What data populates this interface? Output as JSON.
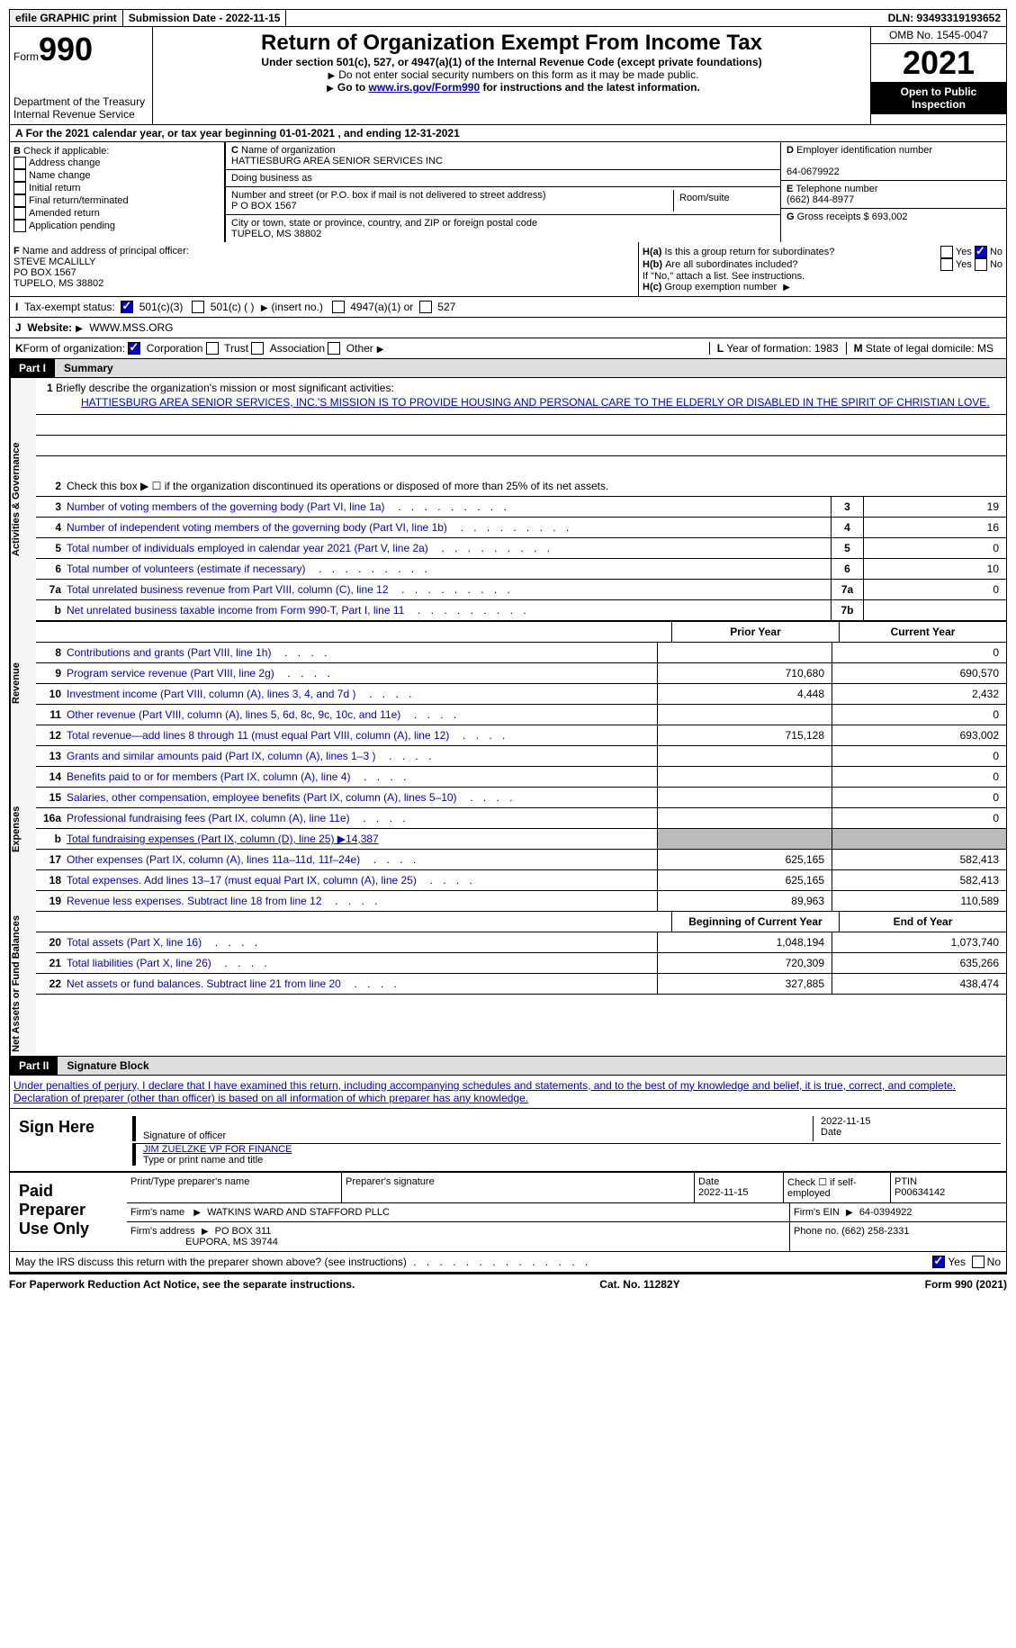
{
  "topbar": {
    "efile": "efile GRAPHIC print",
    "submission": "Submission Date - 2022-11-15",
    "dln": "DLN: 93493319193652"
  },
  "header": {
    "form_label": "Form",
    "form_num": "990",
    "title": "Return of Organization Exempt From Income Tax",
    "subtitle": "Under section 501(c), 527, or 4947(a)(1) of the Internal Revenue Code (except private foundations)",
    "note1": "Do not enter social security numbers on this form as it may be made public.",
    "note2_pre": "Go to ",
    "note2_link": "www.irs.gov/Form990",
    "note2_post": " for instructions and the latest information.",
    "dept": "Department of the Treasury",
    "irs": "Internal Revenue Service",
    "omb": "OMB No. 1545-0047",
    "year": "2021",
    "open": "Open to Public Inspection"
  },
  "lineA": "For the 2021 calendar year, or tax year beginning 01-01-2021   , and ending 12-31-2021",
  "sectionB": {
    "label": "Check if applicable:",
    "items": [
      "Address change",
      "Name change",
      "Initial return",
      "Final return/terminated",
      "Amended return",
      "Application pending"
    ]
  },
  "sectionC": {
    "name_label": "Name of organization",
    "name": "HATTIESBURG AREA SENIOR SERVICES INC",
    "dba_label": "Doing business as",
    "addr_label": "Number and street (or P.O. box if mail is not delivered to street address)",
    "addr": "P O BOX 1567",
    "room_label": "Room/suite",
    "city_label": "City or town, state or province, country, and ZIP or foreign postal code",
    "city": "TUPELO, MS  38802"
  },
  "sectionD": {
    "ein_label": "Employer identification number",
    "ein": "64-0679922",
    "phone_label": "Telephone number",
    "phone": "(662) 844-8977",
    "gross_label": "Gross receipts $",
    "gross": "693,002"
  },
  "sectionF": {
    "label": "Name and address of principal officer:",
    "name": "STEVE MCALILLY",
    "addr1": "PO BOX 1567",
    "addr2": "TUPELO, MS  38802"
  },
  "sectionH": {
    "a": "Is this a group return for subordinates?",
    "b": "Are all subordinates included?",
    "b_note": "If \"No,\" attach a list. See instructions.",
    "c": "Group exemption number",
    "yes": "Yes",
    "no": "No"
  },
  "taxExempt": {
    "label": "Tax-exempt status:",
    "opt1": "501(c)(3)",
    "opt2": "501(c) (  )",
    "opt2_note": "(insert no.)",
    "opt3": "4947(a)(1) or",
    "opt4": "527"
  },
  "website": {
    "label": "Website:",
    "value": "WWW.MSS.ORG"
  },
  "lineK": {
    "label": "Form of organization:",
    "corp": "Corporation",
    "trust": "Trust",
    "assoc": "Association",
    "other": "Other"
  },
  "lineL": {
    "label": "Year of formation:",
    "value": "1983"
  },
  "lineM": {
    "label": "State of legal domicile:",
    "value": "MS"
  },
  "part1": {
    "label": "Part I",
    "title": "Summary"
  },
  "summary": {
    "line1_label": "Briefly describe the organization's mission or most significant activities:",
    "mission": "HATTIESBURG AREA SENIOR SERVICES, INC.'S MISSION IS TO PROVIDE HOUSING AND PERSONAL CARE TO THE ELDERLY OR DISABLED IN THE SPIRIT OF CHRISTIAN LOVE.",
    "line2": "Check this box ▶ ☐ if the organization discontinued its operations or disposed of more than 25% of its net assets.",
    "vert_ag": "Activities & Governance",
    "vert_rev": "Revenue",
    "vert_exp": "Expenses",
    "vert_na": "Net Assets or Fund Balances",
    "lines_ag": [
      {
        "n": "3",
        "d": "Number of voting members of the governing body (Part VI, line 1a)",
        "box": "3",
        "v": "19"
      },
      {
        "n": "4",
        "d": "Number of independent voting members of the governing body (Part VI, line 1b)",
        "box": "4",
        "v": "16"
      },
      {
        "n": "5",
        "d": "Total number of individuals employed in calendar year 2021 (Part V, line 2a)",
        "box": "5",
        "v": "0"
      },
      {
        "n": "6",
        "d": "Total number of volunteers (estimate if necessary)",
        "box": "6",
        "v": "10"
      },
      {
        "n": "7a",
        "d": "Total unrelated business revenue from Part VIII, column (C), line 12",
        "box": "7a",
        "v": "0"
      },
      {
        "n": "b",
        "d": "Net unrelated business taxable income from Form 990-T, Part I, line 11",
        "box": "7b",
        "v": ""
      }
    ],
    "prior_hdr": "Prior Year",
    "curr_hdr": "Current Year",
    "lines_rev": [
      {
        "n": "8",
        "d": "Contributions and grants (Part VIII, line 1h)",
        "p": "",
        "c": "0"
      },
      {
        "n": "9",
        "d": "Program service revenue (Part VIII, line 2g)",
        "p": "710,680",
        "c": "690,570"
      },
      {
        "n": "10",
        "d": "Investment income (Part VIII, column (A), lines 3, 4, and 7d )",
        "p": "4,448",
        "c": "2,432"
      },
      {
        "n": "11",
        "d": "Other revenue (Part VIII, column (A), lines 5, 6d, 8c, 9c, 10c, and 11e)",
        "p": "",
        "c": "0"
      },
      {
        "n": "12",
        "d": "Total revenue—add lines 8 through 11 (must equal Part VIII, column (A), line 12)",
        "p": "715,128",
        "c": "693,002"
      }
    ],
    "lines_exp": [
      {
        "n": "13",
        "d": "Grants and similar amounts paid (Part IX, column (A), lines 1–3 )",
        "p": "",
        "c": "0"
      },
      {
        "n": "14",
        "d": "Benefits paid to or for members (Part IX, column (A), line 4)",
        "p": "",
        "c": "0"
      },
      {
        "n": "15",
        "d": "Salaries, other compensation, employee benefits (Part IX, column (A), lines 5–10)",
        "p": "",
        "c": "0"
      },
      {
        "n": "16a",
        "d": "Professional fundraising fees (Part IX, column (A), line 11e)",
        "p": "",
        "c": "0"
      },
      {
        "n": "b",
        "d": "Total fundraising expenses (Part IX, column (D), line 25) ▶14,387",
        "grey": true
      },
      {
        "n": "17",
        "d": "Other expenses (Part IX, column (A), lines 11a–11d, 11f–24e)",
        "p": "625,165",
        "c": "582,413"
      },
      {
        "n": "18",
        "d": "Total expenses. Add lines 13–17 (must equal Part IX, column (A), line 25)",
        "p": "625,165",
        "c": "582,413"
      },
      {
        "n": "19",
        "d": "Revenue less expenses. Subtract line 18 from line 12",
        "p": "89,963",
        "c": "110,589"
      }
    ],
    "begin_hdr": "Beginning of Current Year",
    "end_hdr": "End of Year",
    "lines_na": [
      {
        "n": "20",
        "d": "Total assets (Part X, line 16)",
        "p": "1,048,194",
        "c": "1,073,740"
      },
      {
        "n": "21",
        "d": "Total liabilities (Part X, line 26)",
        "p": "720,309",
        "c": "635,266"
      },
      {
        "n": "22",
        "d": "Net assets or fund balances. Subtract line 21 from line 20",
        "p": "327,885",
        "c": "438,474"
      }
    ]
  },
  "part2": {
    "label": "Part II",
    "title": "Signature Block"
  },
  "sig": {
    "perjury": "Under penalties of perjury, I declare that I have examined this return, including accompanying schedules and statements, and to the best of my knowledge and belief, it is true, correct, and complete. Declaration of preparer (other than officer) is based on all information of which preparer has any knowledge.",
    "sign_here": "Sign Here",
    "sig_officer": "Signature of officer",
    "date": "Date",
    "date_val": "2022-11-15",
    "name_title": "JIM ZUELZKE VP FOR FINANCE",
    "name_label": "Type or print name and title"
  },
  "prep": {
    "title": "Paid Preparer Use Only",
    "print_name": "Print/Type preparer's name",
    "sig": "Preparer's signature",
    "date_label": "Date",
    "date": "2022-11-15",
    "check_label": "Check ☐ if self-employed",
    "ptin_label": "PTIN",
    "ptin": "P00634142",
    "firm_name_label": "Firm's name",
    "firm_name": "WATKINS WARD AND STAFFORD PLLC",
    "firm_ein_label": "Firm's EIN",
    "firm_ein": "64-0394922",
    "firm_addr_label": "Firm's address",
    "firm_addr": "PO BOX 311",
    "firm_city": "EUPORA, MS  39744",
    "phone_label": "Phone no.",
    "phone": "(662) 258-2331"
  },
  "discuss": {
    "text": "May the IRS discuss this return with the preparer shown above? (see instructions)",
    "yes": "Yes",
    "no": "No"
  },
  "footer": {
    "paperwork": "For Paperwork Reduction Act Notice, see the separate instructions.",
    "cat": "Cat. No. 11282Y",
    "form": "Form 990 (2021)"
  }
}
